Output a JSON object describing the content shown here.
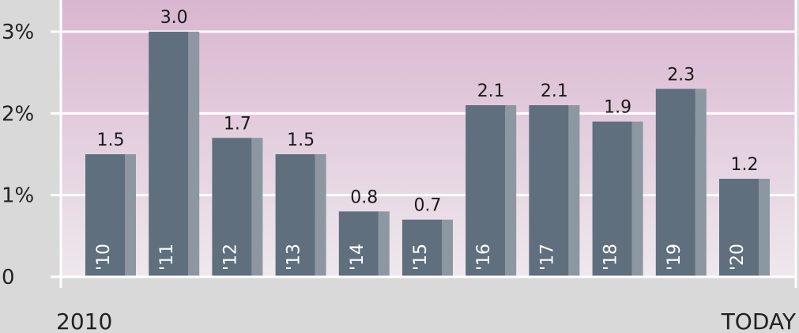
{
  "chart_data": {
    "type": "bar",
    "categories": [
      "'10",
      "'11",
      "'12",
      "'13",
      "'14",
      "'15",
      "'16",
      "'17",
      "'18",
      "'19",
      "'20"
    ],
    "values": [
      1.5,
      3.0,
      1.7,
      1.5,
      0.8,
      0.7,
      2.1,
      2.1,
      1.9,
      2.3,
      1.2
    ],
    "data_labels": [
      "1.5",
      "3.0",
      "1.7",
      "1.5",
      "0.8",
      "0.7",
      "2.1",
      "2.1",
      "1.9",
      "2.3",
      "1.2"
    ],
    "ylim": [
      0,
      3
    ],
    "y_ticks": [
      {
        "value": 0,
        "label": "0"
      },
      {
        "value": 1,
        "label": "1%"
      },
      {
        "value": 2,
        "label": "2%"
      },
      {
        "value": 3,
        "label": "3%"
      }
    ],
    "grid": true,
    "x_start_label": "2010",
    "x_end_label": "TODAY",
    "colors": {
      "bar_face": "#5f6f7e",
      "bar_side": "#8c97a1",
      "background_top": "#d9b6d0",
      "background_bottom": "#eee8ed",
      "page": "#d9d9d9"
    }
  }
}
